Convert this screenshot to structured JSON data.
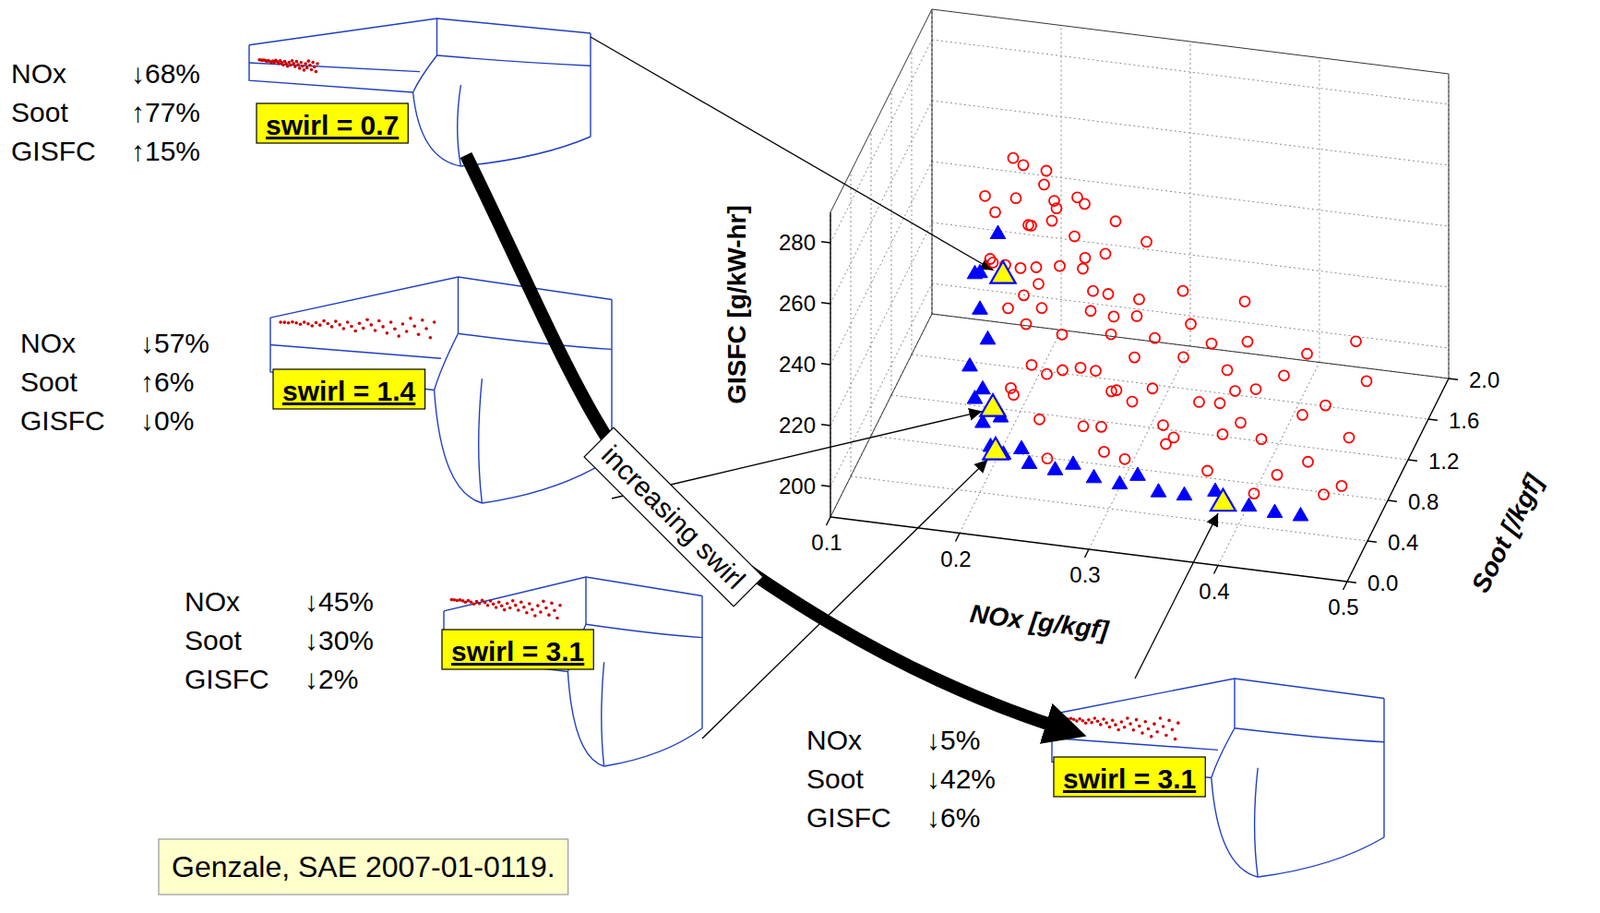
{
  "chart_data": {
    "type": "scatter3d",
    "xlabel": "NOx [g/kgf]",
    "ylabel": "GISFC [g/kW-hr]",
    "zlabel": "Soot [/kgf]",
    "xlim": [
      0.1,
      0.5
    ],
    "xticks": [
      0.1,
      0.2,
      0.3,
      0.4,
      0.5
    ],
    "ylim": [
      190,
      290
    ],
    "yticks": [
      200,
      220,
      240,
      260,
      280
    ],
    "zlim": [
      0,
      2
    ],
    "zticks": [
      {
        "value": 0,
        "label": "0.0"
      },
      0.4,
      0.8,
      1.2,
      1.6,
      {
        "value": 2,
        "label": "2.0"
      }
    ],
    "grid": true,
    "series": [
      {
        "color": "#ff0000",
        "marker": "open-circle",
        "x": [
          0.2,
          0.21,
          0.22,
          0.21,
          0.23,
          0.2,
          0.22,
          0.24,
          0.21,
          0.23,
          0.22,
          0.2,
          0.24,
          0.25,
          0.21,
          0.23,
          0.22,
          0.26,
          0.2,
          0.24,
          0.22,
          0.25,
          0.21,
          0.27,
          0.23,
          0.2,
          0.26,
          0.24,
          0.22,
          0.28,
          0.25,
          0.21,
          0.27,
          0.23,
          0.29,
          0.26,
          0.24,
          0.3,
          0.22,
          0.28,
          0.25,
          0.31,
          0.33,
          0.27,
          0.35,
          0.3,
          0.37,
          0.32,
          0.39,
          0.29,
          0.34,
          0.41,
          0.36,
          0.26,
          0.43,
          0.38,
          0.31,
          0.45,
          0.4,
          0.33,
          0.47,
          0.42,
          0.36,
          0.44,
          0.48,
          0.29,
          0.35,
          0.46,
          0.38,
          0.41,
          0.27,
          0.32,
          0.47,
          0.24,
          0.3,
          0.34,
          0.37,
          0.43,
          0.39,
          0.28,
          0.26,
          0.29,
          0.31,
          0.25,
          0.23,
          0.35,
          0.44,
          0.27
        ],
        "z": [
          0.5,
          0.8,
          0.6,
          1.0,
          0.9,
          0.7,
          1.2,
          0.8,
          0.4,
          1.1,
          0.9,
          0.6,
          1.3,
          0.7,
          1.1,
          0.5,
          1.4,
          0.9,
          0.9,
          0.6,
          1.0,
          1.2,
          0.7,
          0.8,
          1.5,
          1.2,
          1.1,
          0.4,
          0.8,
          1.0,
          1.6,
          1.3,
          0.6,
          0.3,
          1.2,
          1.4,
          1.0,
          0.9,
          0.5,
          1.5,
          0.3,
          0.6,
          1.1,
          0.9,
          0.4,
          1.3,
          0.8,
          0.2,
          1.0,
          0.5,
          1.4,
          0.6,
          1.2,
          0.2,
          0.9,
          0.3,
          1.0,
          0.5,
          1.3,
          0.7,
          0.8,
          0.2,
          1.6,
          1.1,
          0.4,
          0.8,
          0.9,
          1.4,
          0.6,
          1.5,
          1.2,
          1.5,
          0.3,
          0.7,
          0.3,
          0.5,
          1.1,
          0.4,
          0.7,
          0.4,
          0.5,
          0.7,
          1.6,
          1.8,
          1.7,
          1.8,
          1.7,
          1.9
        ],
        "values": [
          284,
          287,
          281,
          278,
          276,
          272,
          270,
          268,
          266,
          264,
          262,
          260,
          259,
          257,
          255,
          253,
          251,
          250,
          248,
          246,
          245,
          243,
          241,
          240,
          239,
          237,
          236,
          234,
          233,
          232,
          231,
          229,
          228,
          227,
          226,
          225,
          224,
          223,
          222,
          221,
          220,
          219,
          218,
          217,
          216,
          216,
          215,
          214,
          214,
          213,
          213,
          212,
          212,
          211,
          211,
          210,
          210,
          210,
          209,
          209,
          209,
          208,
          208,
          208,
          207,
          215,
          211,
          207,
          212,
          210,
          219,
          215,
          207,
          221,
          212,
          210,
          209,
          208,
          213,
          216,
          230,
          218,
          222,
          235,
          243,
          214,
          209,
          226
        ]
      },
      {
        "color": "#0000ff",
        "marker": "triangle",
        "x": [
          0.2,
          0.21,
          0.2,
          0.2,
          0.21,
          0.2,
          0.21,
          0.2,
          0.21,
          0.22,
          0.22,
          0.23,
          0.24,
          0.25,
          0.27,
          0.28,
          0.3,
          0.32,
          0.33,
          0.35,
          0.37,
          0.39,
          0.42,
          0.44,
          0.46
        ],
        "z": [
          0.3,
          0.5,
          0.4,
          0.4,
          0.3,
          0.2,
          0.2,
          0.3,
          0.2,
          0.3,
          0.1,
          0.1,
          0.2,
          0.1,
          0.1,
          0.2,
          0.1,
          0.1,
          0.2,
          0.1,
          0.1,
          0.2,
          0.1,
          0.1,
          0.1
        ],
        "values": [
          265,
          272,
          262,
          250,
          244,
          238,
          231,
          224,
          220,
          219,
          216,
          214,
          213,
          212,
          211,
          210,
          210,
          209,
          209,
          208,
          208,
          207,
          207,
          206,
          206
        ]
      },
      {
        "color": "#ffff00",
        "marker": "triangle",
        "x": [
          0.21,
          0.21,
          0.22,
          0.4
        ],
        "z": [
          0.6,
          0.4,
          0.2,
          0.1
        ],
        "values": [
          255,
          218,
          211,
          207
        ]
      }
    ],
    "annotations": [
      {
        "label": "swirl = 0.7",
        "rows": [
          {
            "name": "NOx",
            "change": "↓68%"
          },
          {
            "name": "Soot",
            "change": "↑77%"
          },
          {
            "name": "GISFC",
            "change": "↑15%"
          }
        ]
      },
      {
        "label": "swirl = 1.4",
        "rows": [
          {
            "name": "NOx",
            "change": "↓57%"
          },
          {
            "name": "Soot",
            "change": "↑6%"
          },
          {
            "name": "GISFC",
            "change": "↓0%"
          }
        ]
      },
      {
        "label": "swirl = 3.1",
        "rows": [
          {
            "name": "NOx",
            "change": "↓45%"
          },
          {
            "name": "Soot",
            "change": "↓30%"
          },
          {
            "name": "GISFC",
            "change": "↓2%"
          }
        ]
      },
      {
        "label": "swirl = 3.1",
        "rows": [
          {
            "name": "NOx",
            "change": "↓5%"
          },
          {
            "name": "Soot",
            "change": "↓42%"
          },
          {
            "name": "GISFC",
            "change": "↓6%"
          }
        ]
      }
    ],
    "arrow_label": "increasing swirl",
    "source": "Genzale, SAE 2007-01-0119."
  }
}
